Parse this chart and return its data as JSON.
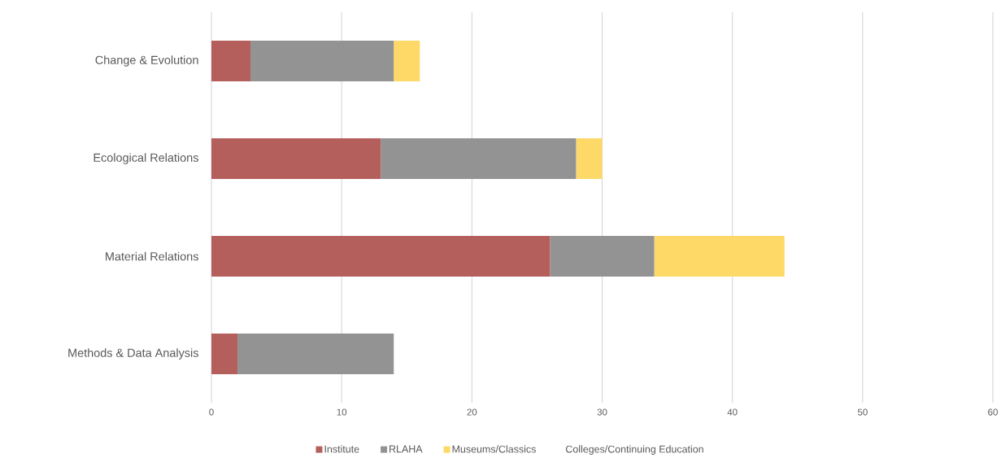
{
  "chart_data": {
    "type": "bar",
    "orientation": "horizontal",
    "stacked": true,
    "categories": [
      "Change & Evolution",
      "Ecological Relations",
      "Material Relations",
      "Methods & Data Analysis"
    ],
    "series": [
      {
        "name": "Institute",
        "color": "#b55f5c",
        "values": [
          3,
          13,
          26,
          2
        ]
      },
      {
        "name": "RLAHA",
        "color": "#939393",
        "values": [
          11,
          15,
          8,
          12
        ]
      },
      {
        "name": "Museums/Classics",
        "color": "#fed967",
        "values": [
          2,
          2,
          10,
          0
        ]
      },
      {
        "name": "Colleges/Continuing Education",
        "values": [
          0,
          0,
          0,
          0
        ]
      }
    ],
    "xlim": [
      0,
      60
    ],
    "xticks": [
      0,
      10,
      20,
      30,
      40,
      50,
      60
    ],
    "grid": "x",
    "legend": "bottom"
  }
}
